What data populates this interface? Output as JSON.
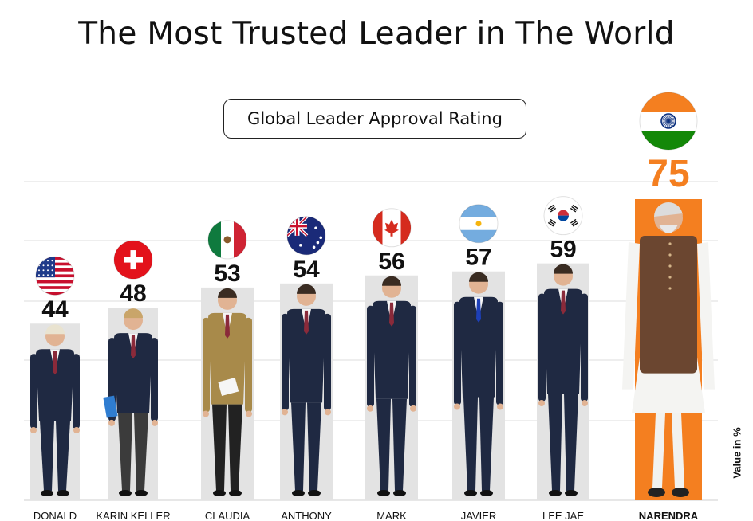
{
  "chart_data": {
    "type": "bar",
    "title": "The Most Trusted Leader in The World",
    "subtitle": "Global Leader Approval Rating",
    "ylabel": "Value in %",
    "xlabel": "",
    "ylim": [
      0,
      75
    ],
    "grid": true,
    "categories": [
      "DONALD",
      "KARIN KELLER",
      "CLAUDIA",
      "ANTHONY",
      "MARK",
      "JAVIER",
      "LEE JAE",
      "NARENDRA"
    ],
    "values": [
      44,
      48,
      53,
      54,
      56,
      57,
      59,
      75
    ],
    "flags": [
      "usa-flag-icon",
      "switzerland-flag-icon",
      "mexico-flag-icon",
      "australia-flag-icon",
      "canada-flag-icon",
      "argentina-flag-icon",
      "south-korea-flag-icon",
      "india-flag-icon"
    ],
    "colors": {
      "bar": "#e3e3e3",
      "highlight_bar": "#f47f20",
      "highlight_value": "#f47f20",
      "value": "#111111",
      "grid": "#dddddd",
      "suit_dark": "#1f2942",
      "skin": "#e1b393"
    }
  }
}
